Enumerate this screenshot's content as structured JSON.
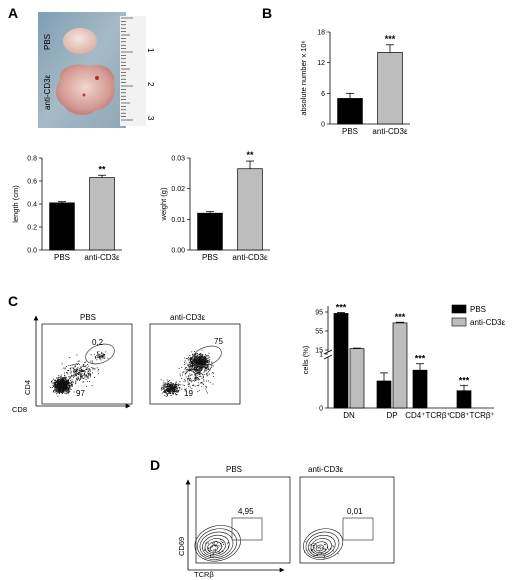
{
  "panels": {
    "A": "A",
    "B": "B",
    "C": "C",
    "D": "D"
  },
  "photo": {
    "label_pbs": "PBS",
    "label_anti": "anti-CD3ε",
    "ruler_marks": [
      "1",
      "2",
      "3"
    ]
  },
  "chart_data": [
    {
      "id": "B",
      "type": "bar",
      "categories": [
        "PBS",
        "anti-CD3ε"
      ],
      "values": [
        5,
        14
      ],
      "errors": [
        1,
        1.5
      ],
      "ylabel": "absolute number x 10⁶",
      "ylim": [
        0,
        18
      ],
      "yticks": [
        "0",
        "6",
        "12",
        "18"
      ],
      "significance": [
        "",
        "***"
      ],
      "colors": [
        "#000000",
        "#bdbdbd"
      ]
    },
    {
      "id": "A_length",
      "type": "bar",
      "categories": [
        "PBS",
        "anti-CD3ε"
      ],
      "values": [
        0.41,
        0.63
      ],
      "errors": [
        0.01,
        0.02
      ],
      "ylabel": "length (cm)",
      "ylim": [
        0,
        0.8
      ],
      "yticks": [
        "0.0",
        "0.2",
        "0.4",
        "0.6",
        "0.8"
      ],
      "significance": [
        "",
        "**"
      ],
      "colors": [
        "#000000",
        "#bdbdbd"
      ]
    },
    {
      "id": "A_weight",
      "type": "bar",
      "categories": [
        "PBS",
        "anti-CD3ε"
      ],
      "values": [
        0.012,
        0.0265
      ],
      "errors": [
        0.0005,
        0.0025
      ],
      "ylabel": "weight (g)",
      "ylim": [
        0,
        0.03
      ],
      "yticks": [
        "0.00",
        "0.01",
        "0.02",
        "0.03"
      ],
      "significance": [
        "",
        "**"
      ],
      "colors": [
        "#000000",
        "#bdbdbd"
      ]
    },
    {
      "id": "C_bar",
      "type": "bar",
      "categories": [
        "DN",
        "DP",
        "CD4⁺TCRβ⁺",
        "CD8⁺TCRβ⁺"
      ],
      "ylabel": "cells (%)",
      "yticks": [
        "0",
        "1",
        "15",
        "55",
        "95"
      ],
      "legend": [
        "PBS",
        "anti-CD3ε"
      ],
      "legend_position": "top-right",
      "series": [
        {
          "name": "PBS",
          "values": [
            92,
            0.5,
            0.7,
            0.32
          ],
          "errors": [
            2,
            0.15,
            0.12,
            0.1
          ],
          "color": "#000000"
        },
        {
          "name": "anti-CD3ε",
          "values": [
            18,
            72,
            0,
            0
          ],
          "errors": [
            1,
            1.5,
            0,
            0
          ],
          "color": "#bdbdbd"
        }
      ],
      "significance": [
        "***",
        "***",
        "***",
        "***"
      ]
    }
  ],
  "flow_C": {
    "xlabel": "CD8",
    "ylabel": "CD4",
    "plots": [
      {
        "title": "PBS",
        "gate_value": "0,2",
        "lower_value": "97"
      },
      {
        "title": "anti-CD3ε",
        "gate_value": "75",
        "lower_value": "19"
      }
    ]
  },
  "flow_D": {
    "xlabel": "TCRβ",
    "ylabel": "CD69",
    "plots": [
      {
        "title": "PBS",
        "gate_value": "4,95"
      },
      {
        "title": "anti-CD3ε",
        "gate_value": "0,01"
      }
    ]
  }
}
